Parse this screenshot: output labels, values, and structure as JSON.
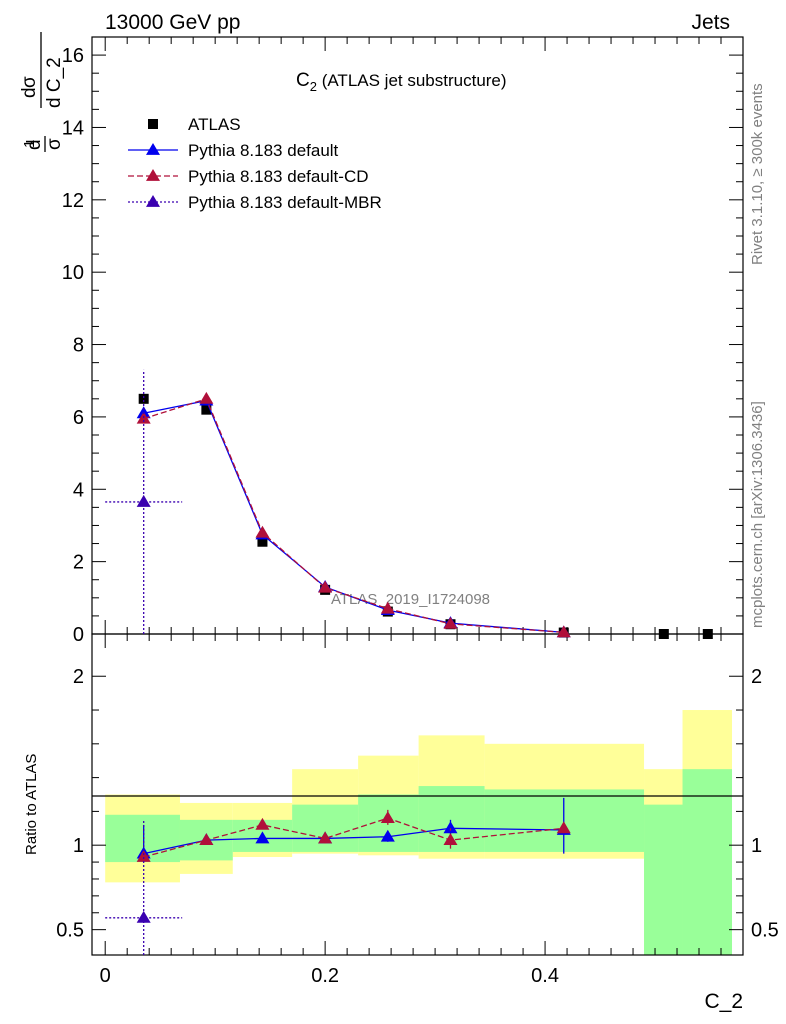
{
  "header": {
    "energy": "13000 GeV pp",
    "category": "Jets"
  },
  "side_labels": {
    "rivet": "Rivet 3.1.10, ≥ 300k events",
    "source": "mcplots.cern.ch [arXiv:1306.3436]"
  },
  "chart_data": [
    {
      "type": "scatter",
      "title": "C_2 (ATLAS jet substructure)",
      "title_main": "C",
      "title_sub": "2",
      "title_rest": " (ATLAS jet substructure)",
      "ylabel": "1/σ dσ/dC_2",
      "analysis_label": "ATLAS_2019_I1724098",
      "xlim": [
        -0.012,
        0.58
      ],
      "ylim": [
        0,
        16.5
      ],
      "yticks": [
        0,
        2,
        4,
        6,
        8,
        10,
        12,
        14,
        16
      ],
      "legend_position": "top-left",
      "bins": [
        {
          "lo": 0.0,
          "hi": 0.068
        },
        {
          "lo": 0.068,
          "hi": 0.116
        },
        {
          "lo": 0.116,
          "hi": 0.17
        },
        {
          "lo": 0.17,
          "hi": 0.23
        },
        {
          "lo": 0.23,
          "hi": 0.285
        },
        {
          "lo": 0.285,
          "hi": 0.345
        },
        {
          "lo": 0.345,
          "hi": 0.49
        },
        {
          "lo": 0.49,
          "hi": 0.525
        },
        {
          "lo": 0.525,
          "hi": 0.57
        }
      ],
      "series": [
        {
          "name": "ATLAS",
          "color": "#000000",
          "marker": "square",
          "x": [
            0.035,
            0.092,
            0.143,
            0.2,
            0.257,
            0.314,
            0.417,
            0.508,
            0.548
          ],
          "y": [
            6.5,
            6.2,
            2.55,
            1.22,
            0.62,
            0.27,
            0.04,
            0.0,
            0.0
          ]
        },
        {
          "name": "Pythia 8.183 default",
          "color": "#0000ee",
          "marker": "triangle",
          "line": "solid",
          "x": [
            0.035,
            0.092,
            0.143,
            0.2,
            0.257,
            0.314,
            0.417
          ],
          "y": [
            6.1,
            6.45,
            2.75,
            1.3,
            0.66,
            0.3,
            0.045
          ]
        },
        {
          "name": "Pythia 8.183 default-CD",
          "color": "#b0103a",
          "marker": "triangle",
          "line": "dashed",
          "x": [
            0.035,
            0.092,
            0.143,
            0.2,
            0.257,
            0.314,
            0.417
          ],
          "y": [
            5.95,
            6.5,
            2.8,
            1.28,
            0.7,
            0.28,
            0.045
          ]
        },
        {
          "name": "Pythia 8.183 default-MBR",
          "color": "#3a00b0",
          "marker": "triangle",
          "line": "dotted",
          "x": [
            0.035
          ],
          "y": [
            3.65
          ],
          "yerr": [
            [
              0,
              7.3
            ]
          ],
          "xerr": [
            [
              0.0,
              0.07
            ]
          ]
        }
      ]
    },
    {
      "type": "scatter",
      "ylabel": "Ratio to ATLAS",
      "xlabel": "C_2",
      "xlim": [
        -0.012,
        0.58
      ],
      "ylim": [
        0.35,
        2.25
      ],
      "yticks": [
        0.5,
        1,
        2
      ],
      "xticks": [
        0,
        0.2,
        0.4
      ],
      "bands": {
        "yellow": [
          [
            0.78,
            1.3
          ],
          [
            0.83,
            1.25
          ],
          [
            0.93,
            1.25
          ],
          [
            0.95,
            1.45
          ],
          [
            0.94,
            1.53
          ],
          [
            0.92,
            1.65
          ],
          [
            0.92,
            1.6
          ],
          [
            0.35,
            1.45
          ],
          [
            0.35,
            1.8
          ]
        ],
        "green": [
          [
            0.9,
            1.18
          ],
          [
            0.91,
            1.15
          ],
          [
            0.96,
            1.15
          ],
          [
            0.96,
            1.24
          ],
          [
            0.96,
            1.3
          ],
          [
            0.96,
            1.35
          ],
          [
            0.96,
            1.33
          ],
          [
            0.35,
            1.24
          ],
          [
            0.35,
            1.45
          ]
        ]
      },
      "series": [
        {
          "name": "Pythia 8.183 default",
          "color": "#0000ee",
          "x": [
            0.035,
            0.092,
            0.143,
            0.2,
            0.257,
            0.314,
            0.417
          ],
          "y": [
            0.95,
            1.03,
            1.04,
            1.04,
            1.05,
            1.1,
            1.09
          ],
          "yerr": [
            [
              0.95,
              1.12
            ],
            null,
            null,
            null,
            [
              1.02,
              1.08
            ],
            [
              1.05,
              1.15
            ],
            [
              0.95,
              1.28
            ]
          ]
        },
        {
          "name": "Pythia 8.183 default-CD",
          "color": "#b0103a",
          "x": [
            0.035,
            0.092,
            0.143,
            0.2,
            0.257,
            0.314,
            0.417
          ],
          "y": [
            0.93,
            1.03,
            1.12,
            1.04,
            1.16,
            1.03,
            1.1
          ],
          "yerr": [
            null,
            null,
            null,
            [
              1.01,
              1.07
            ],
            [
              1.12,
              1.21
            ],
            [
              0.98,
              1.1
            ],
            null
          ]
        },
        {
          "name": "Pythia 8.183 default-MBR",
          "color": "#3a00b0",
          "x": [
            0.035
          ],
          "y": [
            0.57
          ],
          "yerr": [
            [
              0.35,
              1.15
            ]
          ],
          "xerr": [
            [
              0.0,
              0.07
            ]
          ]
        }
      ]
    }
  ]
}
